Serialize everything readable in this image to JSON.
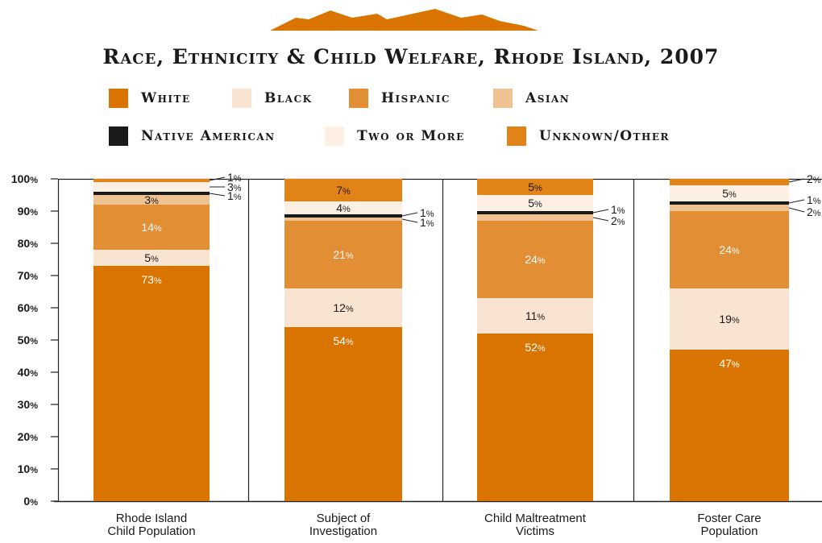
{
  "colors": {
    "white": "#d97400",
    "black": "#f8e4d0",
    "hispanic": "#e28e35",
    "asian": "#efc391",
    "native_american": "#1a1a1a",
    "two_or_more": "#fdf0e3",
    "unknown_other": "#e28318"
  },
  "legend": [
    {
      "label": "White",
      "color": "#d97400"
    },
    {
      "label": "Black",
      "color": "#f8e4d0"
    },
    {
      "label": "Hispanic",
      "color": "#e28e35"
    },
    {
      "label": "Asian",
      "color": "#efc391"
    },
    {
      "label": "Native American",
      "color": "#1a1a1a"
    },
    {
      "label": "Two or More",
      "color": "#fdf0e3"
    },
    {
      "label": "Unknown/Other",
      "color": "#e28318"
    }
  ],
  "chart_data": {
    "type": "bar",
    "stacked": true,
    "title": "Race, Ethnicity & Child Welfare, Rhode Island, 2007",
    "xlabel": "",
    "ylabel": "",
    "ylim": [
      0,
      100
    ],
    "y_ticks": [
      "0%",
      "10%",
      "20%",
      "30%",
      "40%",
      "50%",
      "60%",
      "70%",
      "80%",
      "90%",
      "100%"
    ],
    "grid": false,
    "legend_position": "top",
    "categories": [
      "Rhode Island Child Population",
      "Subject of Investigation",
      "Child Maltreatment Victims",
      "Foster Care Population"
    ],
    "category_lines": [
      [
        "Rhode Island",
        "Child Population"
      ],
      [
        "Subject of",
        "Investigation"
      ],
      [
        "Child Maltreatment",
        "Victims"
      ],
      [
        "Foster Care",
        "Population"
      ]
    ],
    "series": [
      {
        "name": "White",
        "values": [
          73,
          54,
          52,
          47
        ]
      },
      {
        "name": "Black",
        "values": [
          5,
          12,
          11,
          19
        ]
      },
      {
        "name": "Hispanic",
        "values": [
          14,
          21,
          24,
          24
        ]
      },
      {
        "name": "Asian",
        "values": [
          3,
          1,
          2,
          2
        ]
      },
      {
        "name": "Native American",
        "values": [
          1,
          1,
          1,
          1
        ]
      },
      {
        "name": "Two or More",
        "values": [
          3,
          4,
          5,
          5
        ]
      },
      {
        "name": "Unknown/Other",
        "values": [
          1,
          7,
          5,
          2
        ]
      }
    ],
    "value_labels": [
      [
        "73%",
        "5%",
        "14%",
        "3%",
        "1%",
        "3%",
        "1%"
      ],
      [
        "54%",
        "12%",
        "21%",
        "1%",
        "1%",
        "4%",
        "7%"
      ],
      [
        "52%",
        "11%",
        "24%",
        "2%",
        "1%",
        "5%",
        "5%"
      ],
      [
        "47%",
        "19%",
        "24%",
        "2%",
        "1%",
        "5%",
        "2%"
      ]
    ]
  }
}
